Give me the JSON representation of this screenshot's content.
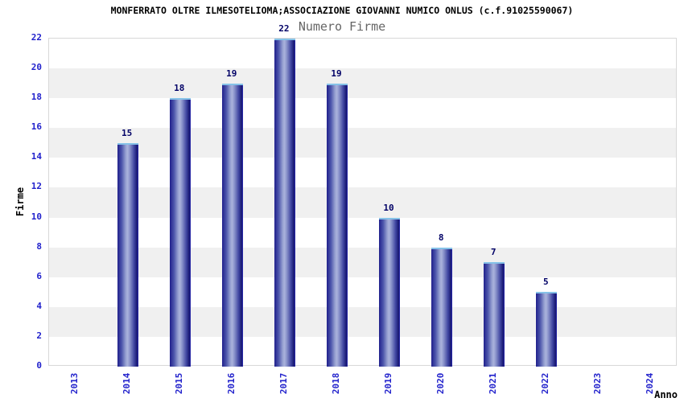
{
  "chart_data": {
    "type": "bar",
    "title": "MONFERRATO OLTRE ILMESOTELIOMA;ASSOCIAZIONE GIOVANNI NUMICO ONLUS (c.f.91025590067)",
    "subtitle": "Numero Firme",
    "categories": [
      "2013",
      "2014",
      "2015",
      "2016",
      "2017",
      "2018",
      "2019",
      "2020",
      "2021",
      "2022",
      "2023",
      "2024"
    ],
    "values": [
      0,
      15,
      18,
      19,
      22,
      19,
      10,
      8,
      7,
      5,
      0,
      0
    ],
    "xlabel": "Anno",
    "ylabel": "Firme",
    "ylim": [
      0,
      22
    ],
    "ytick_step": 2,
    "yticks": [
      0,
      2,
      4,
      6,
      8,
      10,
      12,
      14,
      16,
      18,
      20,
      22
    ],
    "grid": "alternating-horizontal-bands",
    "legend_position": "none",
    "bar_value_labels": true
  },
  "colors": {
    "axis_tick_text": "#2222cc",
    "bar_value_text": "#000066",
    "band_gray": "#f0f0f0",
    "plot_border": "#d8d8d8",
    "bar_dark": "#20208c",
    "bar_light": "#aab3dc",
    "bar_right_edge": "#2d2dbb",
    "bar_cap": "#85c2e8",
    "title_text": "#000000",
    "subtitle_text": "#666666",
    "background": "#ffffff"
  }
}
